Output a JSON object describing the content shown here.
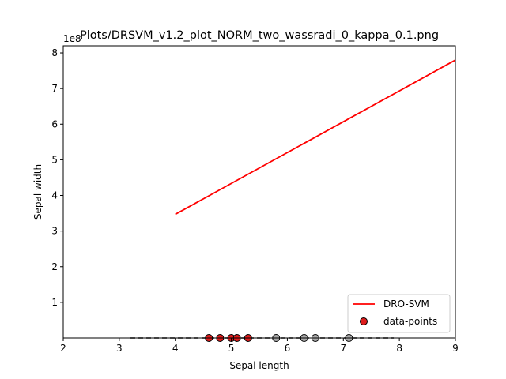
{
  "chart_data": {
    "type": "scatter",
    "title": "Plots/DRSVM_v1.2_plot_NORM_two_wassradi_0_kappa_0.1.png",
    "xlabel": "Sepal length",
    "ylabel": "Sepal width",
    "y_offset_text": "1e8",
    "xlim": [
      2,
      9
    ],
    "ylim": [
      0,
      8.2
    ],
    "x_ticks": [
      "2",
      "3",
      "4",
      "5",
      "6",
      "7",
      "8",
      "9"
    ],
    "y_ticks": [
      "1",
      "2",
      "3",
      "4",
      "5",
      "6",
      "7",
      "8"
    ],
    "grid": false,
    "legend_position": "bottom-right",
    "line": {
      "name": "DRO-SVM",
      "color": "#ff0000",
      "x": [
        4.0,
        9.0
      ],
      "y": [
        3.47,
        7.8
      ]
    },
    "baseline": {
      "style": "dashed",
      "color": "#000000",
      "x": [
        3.2,
        7.9
      ],
      "y": [
        0,
        0
      ]
    },
    "points": {
      "name": "data-points",
      "edge_color": "#000000",
      "x": [
        4.6,
        4.8,
        5.0,
        5.1,
        5.3,
        5.8,
        6.3,
        6.5,
        7.1
      ],
      "y": [
        0,
        0,
        0,
        0,
        0,
        0,
        0,
        0,
        0
      ],
      "colors": [
        "#dd1c1c",
        "#dd1c1c",
        "#dd1c1c",
        "#dd1c1c",
        "#dd1c1c",
        "#aaaaaa",
        "#aaaaaa",
        "#aaaaaa",
        "#aaaaaa"
      ]
    }
  }
}
